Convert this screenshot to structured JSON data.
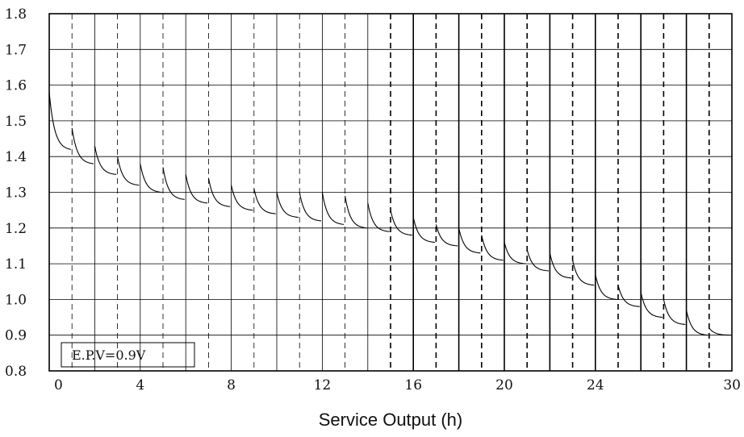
{
  "chart_data": {
    "type": "line",
    "title": "",
    "xlabel": "Service Output (h)",
    "ylabel": "",
    "xlim": [
      0,
      30
    ],
    "ylim": [
      0.8,
      1.8
    ],
    "x_ticks": [
      "0",
      "4",
      "8",
      "12",
      "16",
      "20",
      "24",
      "30"
    ],
    "x_tick_values": [
      0,
      4,
      8,
      12,
      16,
      20,
      24,
      30
    ],
    "y_ticks": [
      "0.8",
      "0.9",
      "1.0",
      "1.1",
      "1.2",
      "1.3",
      "1.4",
      "1.5",
      "1.6",
      "1.7",
      "1.8"
    ],
    "y_tick_values": [
      0.8,
      0.9,
      1.0,
      1.1,
      1.2,
      1.3,
      1.4,
      1.5,
      1.6,
      1.7,
      1.8
    ],
    "grid": true,
    "annotation": "E.P.V=0.9V",
    "series": [
      {
        "segments": [
          {
            "t0": 0,
            "start": 1.58,
            "end": 1.42
          },
          {
            "t0": 1,
            "start": 1.48,
            "end": 1.38
          },
          {
            "t0": 2,
            "start": 1.43,
            "end": 1.35
          },
          {
            "t0": 3,
            "start": 1.4,
            "end": 1.32
          },
          {
            "t0": 4,
            "start": 1.38,
            "end": 1.3
          },
          {
            "t0": 5,
            "start": 1.37,
            "end": 1.28
          },
          {
            "t0": 6,
            "start": 1.35,
            "end": 1.27
          },
          {
            "t0": 7,
            "start": 1.34,
            "end": 1.26
          },
          {
            "t0": 8,
            "start": 1.32,
            "end": 1.25
          },
          {
            "t0": 9,
            "start": 1.31,
            "end": 1.24
          },
          {
            "t0": 10,
            "start": 1.3,
            "end": 1.23
          },
          {
            "t0": 11,
            "start": 1.3,
            "end": 1.22
          },
          {
            "t0": 12,
            "start": 1.3,
            "end": 1.21
          },
          {
            "t0": 13,
            "start": 1.29,
            "end": 1.2
          },
          {
            "t0": 14,
            "start": 1.27,
            "end": 1.19
          },
          {
            "t0": 15,
            "start": 1.25,
            "end": 1.18
          },
          {
            "t0": 16,
            "start": 1.23,
            "end": 1.16
          },
          {
            "t0": 17,
            "start": 1.21,
            "end": 1.15
          },
          {
            "t0": 18,
            "start": 1.2,
            "end": 1.13
          },
          {
            "t0": 19,
            "start": 1.18,
            "end": 1.11
          },
          {
            "t0": 20,
            "start": 1.16,
            "end": 1.1
          },
          {
            "t0": 21,
            "start": 1.14,
            "end": 1.08
          },
          {
            "t0": 22,
            "start": 1.13,
            "end": 1.06
          },
          {
            "t0": 23,
            "start": 1.11,
            "end": 1.04
          },
          {
            "t0": 24,
            "start": 1.07,
            "end": 1.0
          },
          {
            "t0": 25,
            "start": 1.04,
            "end": 0.98
          },
          {
            "t0": 26,
            "start": 1.02,
            "end": 0.95
          },
          {
            "t0": 27,
            "start": 1.0,
            "end": 0.93
          },
          {
            "t0": 28,
            "start": 0.97,
            "end": 0.9
          },
          {
            "t0": 29,
            "start": 0.92,
            "end": 0.9
          }
        ]
      }
    ]
  }
}
